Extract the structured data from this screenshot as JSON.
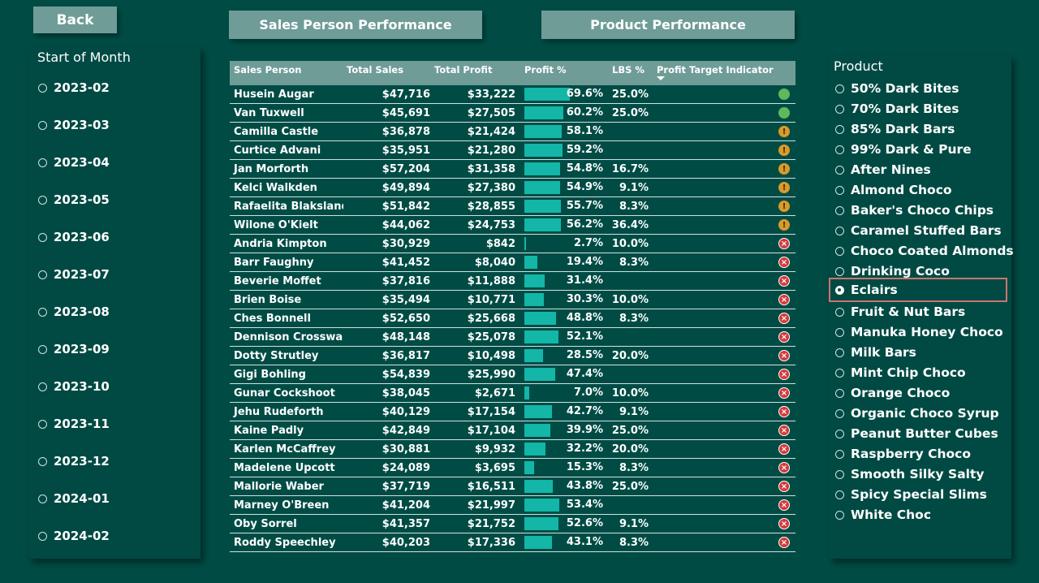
{
  "buttons": {
    "back": "Back",
    "sales_person": "Sales Person Performance",
    "product": "Product Performance"
  },
  "month_slicer": {
    "title": "Start of Month",
    "items": [
      "2023-02",
      "2023-03",
      "2023-04",
      "2023-05",
      "2023-06",
      "2023-07",
      "2023-08",
      "2023-09",
      "2023-10",
      "2023-11",
      "2023-12",
      "2024-01",
      "2024-02"
    ]
  },
  "product_slicer": {
    "title": "Product",
    "selected": "Eclairs",
    "items": [
      "50% Dark Bites",
      "70% Dark Bites",
      "85% Dark Bars",
      "99% Dark & Pure",
      "After Nines",
      "Almond Choco",
      "Baker's Choco Chips",
      "Caramel Stuffed Bars",
      "Choco Coated Almonds",
      "Drinking Coco",
      "Eclairs",
      "Fruit & Nut Bars",
      "Manuka Honey Choco",
      "Milk Bars",
      "Mint Chip Choco",
      "Orange Choco",
      "Organic Choco Syrup",
      "Peanut Butter Cubes",
      "Raspberry Choco",
      "Smooth Silky Salty",
      "Spicy Special Slims",
      "White Choc"
    ]
  },
  "colors": {
    "background": "#004c45",
    "header": "#6f9c97",
    "bar": "#13b6a7",
    "good": "#5fb85a",
    "warn": "#d89a2a",
    "bad": "#d13b3b",
    "selection_outline": "#c87670"
  },
  "table": {
    "columns": [
      "Sales Person",
      "Total Sales",
      "Total Profit",
      "Profit %",
      "LBS %",
      "Profit Target Indicator"
    ],
    "sorted_column": "Profit Target Indicator",
    "sort_direction": "descending",
    "rows": [
      {
        "name": "Husein Augar",
        "sales": "$47,716",
        "profit": "$33,222",
        "pct": "69.6%",
        "pct_value": 69.6,
        "lbs": "25.0%",
        "indicator": "good"
      },
      {
        "name": "Van Tuxwell",
        "sales": "$45,691",
        "profit": "$27,505",
        "pct": "60.2%",
        "pct_value": 60.2,
        "lbs": "25.0%",
        "indicator": "good"
      },
      {
        "name": "Camilla Castle",
        "sales": "$36,878",
        "profit": "$21,424",
        "pct": "58.1%",
        "pct_value": 58.1,
        "lbs": "",
        "indicator": "warn"
      },
      {
        "name": "Curtice Advani",
        "sales": "$35,951",
        "profit": "$21,280",
        "pct": "59.2%",
        "pct_value": 59.2,
        "lbs": "",
        "indicator": "warn"
      },
      {
        "name": "Jan Morforth",
        "sales": "$57,204",
        "profit": "$31,358",
        "pct": "54.8%",
        "pct_value": 54.8,
        "lbs": "16.7%",
        "indicator": "warn"
      },
      {
        "name": "Kelci Walkden",
        "sales": "$49,894",
        "profit": "$27,380",
        "pct": "54.9%",
        "pct_value": 54.9,
        "lbs": "9.1%",
        "indicator": "warn"
      },
      {
        "name": "Rafaelita Blaksland",
        "sales": "$51,842",
        "profit": "$28,855",
        "pct": "55.7%",
        "pct_value": 55.7,
        "lbs": "8.3%",
        "indicator": "warn"
      },
      {
        "name": "Wilone O'Kielt",
        "sales": "$44,062",
        "profit": "$24,753",
        "pct": "56.2%",
        "pct_value": 56.2,
        "lbs": "36.4%",
        "indicator": "warn"
      },
      {
        "name": "Andria Kimpton",
        "sales": "$30,929",
        "profit": "$842",
        "pct": "2.7%",
        "pct_value": 2.7,
        "lbs": "10.0%",
        "indicator": "bad"
      },
      {
        "name": "Barr Faughny",
        "sales": "$41,452",
        "profit": "$8,040",
        "pct": "19.4%",
        "pct_value": 19.4,
        "lbs": "8.3%",
        "indicator": "bad"
      },
      {
        "name": "Beverie Moffet",
        "sales": "$37,816",
        "profit": "$11,888",
        "pct": "31.4%",
        "pct_value": 31.4,
        "lbs": "",
        "indicator": "bad"
      },
      {
        "name": "Brien Boise",
        "sales": "$35,494",
        "profit": "$10,771",
        "pct": "30.3%",
        "pct_value": 30.3,
        "lbs": "10.0%",
        "indicator": "bad"
      },
      {
        "name": "Ches Bonnell",
        "sales": "$52,650",
        "profit": "$25,668",
        "pct": "48.8%",
        "pct_value": 48.8,
        "lbs": "8.3%",
        "indicator": "bad"
      },
      {
        "name": "Dennison Crosswaite",
        "sales": "$48,148",
        "profit": "$25,078",
        "pct": "52.1%",
        "pct_value": 52.1,
        "lbs": "",
        "indicator": "bad"
      },
      {
        "name": "Dotty Strutley",
        "sales": "$36,817",
        "profit": "$10,498",
        "pct": "28.5%",
        "pct_value": 28.5,
        "lbs": "20.0%",
        "indicator": "bad"
      },
      {
        "name": "Gigi Bohling",
        "sales": "$54,839",
        "profit": "$25,990",
        "pct": "47.4%",
        "pct_value": 47.4,
        "lbs": "",
        "indicator": "bad"
      },
      {
        "name": "Gunar Cockshoot",
        "sales": "$38,045",
        "profit": "$2,671",
        "pct": "7.0%",
        "pct_value": 7.0,
        "lbs": "10.0%",
        "indicator": "bad"
      },
      {
        "name": "Jehu Rudeforth",
        "sales": "$40,129",
        "profit": "$17,154",
        "pct": "42.7%",
        "pct_value": 42.7,
        "lbs": "9.1%",
        "indicator": "bad"
      },
      {
        "name": "Kaine Padly",
        "sales": "$42,849",
        "profit": "$17,104",
        "pct": "39.9%",
        "pct_value": 39.9,
        "lbs": "25.0%",
        "indicator": "bad"
      },
      {
        "name": "Karlen McCaffrey",
        "sales": "$30,881",
        "profit": "$9,932",
        "pct": "32.2%",
        "pct_value": 32.2,
        "lbs": "20.0%",
        "indicator": "bad"
      },
      {
        "name": "Madelene Upcott",
        "sales": "$24,089",
        "profit": "$3,695",
        "pct": "15.3%",
        "pct_value": 15.3,
        "lbs": "8.3%",
        "indicator": "bad"
      },
      {
        "name": "Mallorie Waber",
        "sales": "$37,719",
        "profit": "$16,511",
        "pct": "43.8%",
        "pct_value": 43.8,
        "lbs": "25.0%",
        "indicator": "bad"
      },
      {
        "name": "Marney O'Breen",
        "sales": "$41,204",
        "profit": "$21,997",
        "pct": "53.4%",
        "pct_value": 53.4,
        "lbs": "",
        "indicator": "bad"
      },
      {
        "name": "Oby Sorrel",
        "sales": "$41,357",
        "profit": "$21,752",
        "pct": "52.6%",
        "pct_value": 52.6,
        "lbs": "9.1%",
        "indicator": "bad"
      },
      {
        "name": "Roddy Speechley",
        "sales": "$40,203",
        "profit": "$17,336",
        "pct": "43.1%",
        "pct_value": 43.1,
        "lbs": "8.3%",
        "indicator": "bad"
      }
    ]
  }
}
